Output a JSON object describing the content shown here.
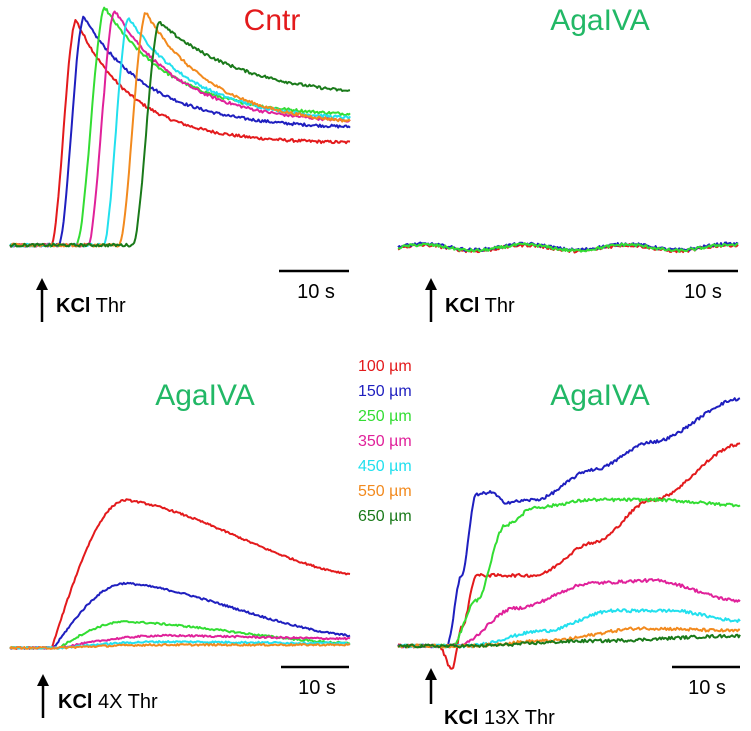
{
  "chart_data": [
    {
      "type": "line",
      "panel": "top-left",
      "title": "Cntr",
      "title_color": "#e31a1c",
      "x_unit": "s",
      "scale_bar_label": "10 s",
      "scale_bar_seconds": 10,
      "xlim": [
        0,
        35
      ],
      "ylim": [
        0,
        1
      ],
      "stimulus": {
        "prefix": "KCl",
        "suffix": " Thr",
        "time": 3
      },
      "series": [
        {
          "name": "100 µm",
          "color": "#e31a1c",
          "baseline": 0.02,
          "onset": 4.2,
          "rise": 2.6,
          "peak": 0.95,
          "plateau": 0.44,
          "decay": 6
        },
        {
          "name": "150 µm",
          "color": "#1f1fbf",
          "baseline": 0.02,
          "onset": 5.0,
          "rise": 2.6,
          "peak": 0.96,
          "plateau": 0.5,
          "decay": 7
        },
        {
          "name": "250 µm",
          "color": "#33dd33",
          "baseline": 0.02,
          "onset": 6.8,
          "rise": 3.0,
          "peak": 1.0,
          "plateau": 0.55,
          "decay": 7
        },
        {
          "name": "350 µm",
          "color": "#e0219a",
          "baseline": 0.02,
          "onset": 8.0,
          "rise": 2.8,
          "peak": 0.99,
          "plateau": 0.52,
          "decay": 7
        },
        {
          "name": "450 µm",
          "color": "#22e0ee",
          "baseline": 0.02,
          "onset": 9.6,
          "rise": 2.6,
          "peak": 0.96,
          "plateau": 0.53,
          "decay": 7
        },
        {
          "name": "550 µm",
          "color": "#f28a1e",
          "baseline": 0.02,
          "onset": 11.2,
          "rise": 2.8,
          "peak": 0.98,
          "plateau": 0.51,
          "decay": 7
        },
        {
          "name": "650 µm",
          "color": "#1a7a1a",
          "baseline": 0.02,
          "onset": 12.6,
          "rise": 2.8,
          "peak": 0.94,
          "plateau": 0.62,
          "decay": 9
        }
      ]
    },
    {
      "type": "line",
      "panel": "top-right",
      "title": "AgaIVA",
      "title_color": "#22b866",
      "x_unit": "s",
      "scale_bar_label": "10 s",
      "scale_bar_seconds": 10,
      "xlim": [
        0,
        35
      ],
      "ylim": [
        0,
        1
      ],
      "stimulus": {
        "prefix": "KCl",
        "suffix": " Thr",
        "time": 3
      },
      "series": [
        {
          "name": "100 µm",
          "color": "#e31a1c",
          "flat": 0.02
        },
        {
          "name": "150 µm",
          "color": "#1f1fbf",
          "flat": 0.025
        },
        {
          "name": "250 µm",
          "color": "#33dd33",
          "flat": 0.022
        }
      ]
    },
    {
      "type": "line",
      "panel": "bottom-left",
      "title": "AgaIVA",
      "title_color": "#22b866",
      "x_unit": "s",
      "scale_bar_label": "10 s",
      "scale_bar_seconds": 10,
      "xlim": [
        0,
        35
      ],
      "ylim": [
        0,
        1
      ],
      "stimulus": {
        "prefix": "KCl",
        "suffix": " 4X Thr",
        "time": 3
      },
      "series": [
        {
          "name": "100 µm",
          "color": "#e31a1c",
          "hump": true,
          "onset": 4.3,
          "peak": 0.98,
          "peak_t": 12,
          "end": 0.5
        },
        {
          "name": "150 µm",
          "color": "#1f1fbf",
          "hump": true,
          "onset": 4.5,
          "peak": 0.44,
          "peak_t": 12,
          "end": 0.1
        },
        {
          "name": "250 µm",
          "color": "#33dd33",
          "hump": true,
          "onset": 5,
          "peak": 0.19,
          "peak_t": 12,
          "end": 0.05
        },
        {
          "name": "350 µm",
          "color": "#e0219a",
          "hump": true,
          "onset": 5,
          "peak": 0.1,
          "peak_t": 16,
          "end": 0.08
        },
        {
          "name": "450 µm",
          "color": "#22e0ee",
          "hump": true,
          "onset": 5,
          "peak": 0.06,
          "peak_t": 16,
          "end": 0.05
        },
        {
          "name": "550 µm",
          "color": "#f28a1e",
          "hump": true,
          "onset": 5,
          "peak": 0.04,
          "peak_t": 16,
          "end": 0.04
        }
      ]
    },
    {
      "type": "line",
      "panel": "bottom-right",
      "title": "AgaIVA",
      "title_color": "#22b866",
      "x_unit": "s",
      "scale_bar_label": "10 s",
      "scale_bar_seconds": 10,
      "xlim": [
        0,
        35
      ],
      "ylim": [
        0,
        1
      ],
      "stimulus": {
        "prefix": "KCl",
        "suffix": " 13X Thr",
        "time": 3
      },
      "series": [
        {
          "name": "100 µm",
          "color": "#e31a1c",
          "kind": "dip-rise",
          "knots": [
            [
              0,
              0.02
            ],
            [
              4.2,
              0.02
            ],
            [
              5.5,
              -0.07
            ],
            [
              6.6,
              0.1
            ],
            [
              8,
              0.3
            ],
            [
              10,
              0.3
            ],
            [
              14,
              0.3
            ],
            [
              20,
              0.43
            ],
            [
              26,
              0.6
            ],
            [
              35,
              0.82
            ]
          ]
        },
        {
          "name": "150 µm",
          "color": "#1f1fbf",
          "kind": "knots",
          "knots": [
            [
              0,
              0.02
            ],
            [
              5,
              0.02
            ],
            [
              6.5,
              0.3
            ],
            [
              8,
              0.62
            ],
            [
              9.5,
              0.63
            ],
            [
              11,
              0.59
            ],
            [
              14,
              0.6
            ],
            [
              20,
              0.72
            ],
            [
              26,
              0.83
            ],
            [
              35,
              1.0
            ]
          ]
        },
        {
          "name": "250 µm",
          "color": "#33dd33",
          "kind": "knots",
          "knots": [
            [
              0,
              0.02
            ],
            [
              5.5,
              0.02
            ],
            [
              8,
              0.2
            ],
            [
              11,
              0.5
            ],
            [
              14,
              0.57
            ],
            [
              20,
              0.6
            ],
            [
              26,
              0.6
            ],
            [
              35,
              0.58
            ]
          ]
        },
        {
          "name": "350 µm",
          "color": "#e0219a",
          "kind": "knots",
          "knots": [
            [
              0,
              0.02
            ],
            [
              6,
              0.02
            ],
            [
              12,
              0.17
            ],
            [
              20,
              0.27
            ],
            [
              26,
              0.28
            ],
            [
              35,
              0.2
            ]
          ]
        },
        {
          "name": "450 µm",
          "color": "#22e0ee",
          "kind": "knots",
          "knots": [
            [
              0,
              0.02
            ],
            [
              7,
              0.02
            ],
            [
              15,
              0.08
            ],
            [
              22,
              0.16
            ],
            [
              28,
              0.16
            ],
            [
              35,
              0.12
            ]
          ]
        },
        {
          "name": "550 µm",
          "color": "#f28a1e",
          "kind": "knots",
          "knots": [
            [
              0,
              0.02
            ],
            [
              7,
              0.02
            ],
            [
              15,
              0.04
            ],
            [
              25,
              0.09
            ],
            [
              35,
              0.08
            ]
          ]
        },
        {
          "name": "650 µm",
          "color": "#1a7a1a",
          "kind": "knots",
          "knots": [
            [
              0,
              0.02
            ],
            [
              7,
              0.02
            ],
            [
              20,
              0.04
            ],
            [
              35,
              0.06
            ]
          ]
        }
      ]
    }
  ],
  "legend": {
    "placement": "center",
    "items": [
      {
        "label": "100 µm",
        "color": "#e31a1c"
      },
      {
        "label": "150 µm",
        "color": "#1f1fbf"
      },
      {
        "label": "250 µm",
        "color": "#33dd33"
      },
      {
        "label": "350 µm",
        "color": "#e0219a"
      },
      {
        "label": "450 µm",
        "color": "#22e0ee"
      },
      {
        "label": "550 µm",
        "color": "#f28a1e"
      },
      {
        "label": "650 µm",
        "color": "#1a7a1a"
      }
    ]
  }
}
